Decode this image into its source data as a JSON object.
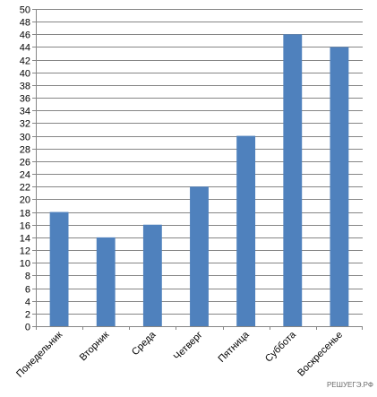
{
  "chart_data": {
    "type": "bar",
    "categories": [
      "Понедельник",
      "Вторник",
      "Среда",
      "Четверг",
      "Пятница",
      "Суббота",
      "Воскресенье"
    ],
    "values": [
      18,
      14,
      16,
      22,
      30,
      46,
      44
    ],
    "ylim": [
      0,
      50
    ],
    "ytick_step": 2,
    "grid": true,
    "bar_color": "#4f81bd",
    "grid_color": "#868686"
  },
  "watermark": "РЕШУЕГЭ.РФ"
}
